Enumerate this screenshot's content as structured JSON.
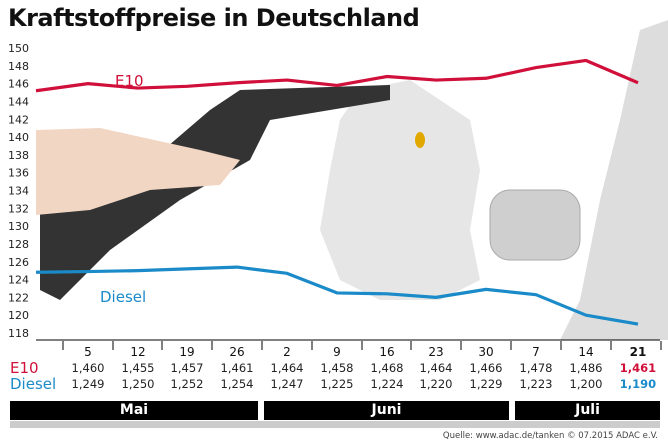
{
  "chart_data": {
    "type": "line",
    "title": "Kraftstoffpreise in Deutschland",
    "x": [
      "5",
      "12",
      "19",
      "26",
      "2",
      "9",
      "16",
      "23",
      "30",
      "7",
      "14",
      "21"
    ],
    "months": [
      "Mai",
      "Juni",
      "Juli"
    ],
    "ylim": [
      118,
      150
    ],
    "yticks": [
      "118",
      "120",
      "122",
      "124",
      "126",
      "128",
      "130",
      "132",
      "134",
      "136",
      "138",
      "140",
      "142",
      "144",
      "146",
      "148",
      "150"
    ],
    "grid": false,
    "series": [
      {
        "name": "E10",
        "color": "#d0103a",
        "values": [
          146.0,
          145.5,
          145.7,
          146.1,
          146.4,
          145.8,
          146.8,
          146.4,
          146.6,
          147.8,
          148.6,
          146.1
        ],
        "labels": [
          "1,460",
          "1,455",
          "1,457",
          "1,461",
          "1,464",
          "1,458",
          "1,468",
          "1,464",
          "1,466",
          "1,478",
          "1,486",
          "1,461"
        ]
      },
      {
        "name": "Diesel",
        "color": "#1a8ac8",
        "values": [
          124.9,
          125.0,
          125.2,
          125.4,
          124.7,
          122.5,
          122.4,
          122.0,
          122.9,
          122.3,
          120.0,
          119.0
        ],
        "labels": [
          "1,249",
          "1,250",
          "1,252",
          "1,254",
          "1,247",
          "1,225",
          "1,224",
          "1,220",
          "1,229",
          "1,223",
          "1,200",
          "1,190"
        ]
      }
    ],
    "source": "Quelle: www.adac.de/tanken   © 07.2015  ADAC e.V."
  }
}
